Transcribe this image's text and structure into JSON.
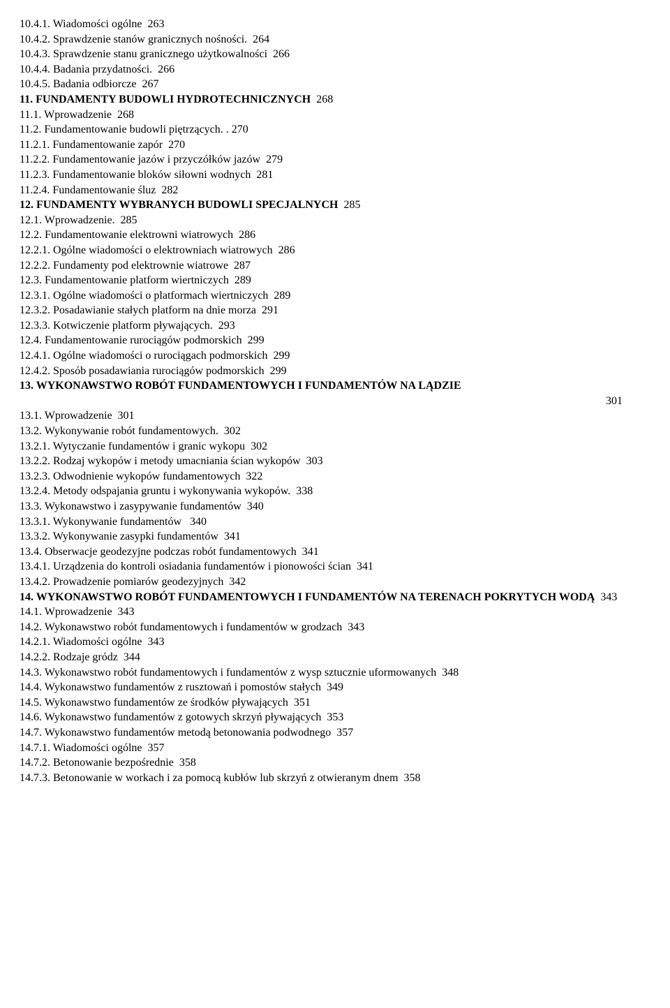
{
  "lines": [
    {
      "text": "10.4.1. Wiadomości ogólne  263",
      "bold": false
    },
    {
      "text": "10.4.2. Sprawdzenie stanów granicznych nośności.  264",
      "bold": false
    },
    {
      "text": "10.4.3. Sprawdzenie stanu granicznego użytkowalności  266",
      "bold": false
    },
    {
      "text": "10.4.4. Badania przydatności.  266",
      "bold": false
    },
    {
      "text": "10.4.5. Badania odbiorcze  267",
      "bold": false
    },
    {
      "prefix": "11. FUNDAMENTY BUDOWLI HYDROTECHNICZNYCH",
      "suffix": "  268",
      "bold": true
    },
    {
      "text": "11.1. Wprowadzenie  268",
      "bold": false
    },
    {
      "text": "11.2. Fundamentowanie budowli piętrzących. . 270",
      "bold": false
    },
    {
      "text": "11.2.1. Fundamentowanie zapór  270",
      "bold": false
    },
    {
      "text": "11.2.2. Fundamentowanie jazów i przyczółków jazów  279",
      "bold": false
    },
    {
      "text": "11.2.3. Fundamentowanie bloków siłowni wodnych  281",
      "bold": false
    },
    {
      "text": "11.2.4. Fundamentowanie śluz  282",
      "bold": false
    },
    {
      "prefix": "12. FUNDAMENTY WYBRANYCH BUDOWLI SPECJALNYCH",
      "suffix": "  285",
      "bold": true
    },
    {
      "text": "12.1. Wprowadzenie.  285",
      "bold": false
    },
    {
      "text": "12.2. Fundamentowanie elektrowni wiatrowych  286",
      "bold": false
    },
    {
      "text": "12.2.1. Ogólne wiadomości o elektrowniach wiatrowych  286",
      "bold": false
    },
    {
      "text": "12.2.2. Fundamenty pod elektrownie wiatrowe  287",
      "bold": false
    },
    {
      "text": "12.3. Fundamentowanie platform wiertniczych  289",
      "bold": false
    },
    {
      "text": "12.3.1. Ogólne wiadomości o platformach wiertniczych  289",
      "bold": false
    },
    {
      "text": "12.3.2. Posadawianie stałych platform na dnie morza  291",
      "bold": false
    },
    {
      "text": "12.3.3. Kotwiczenie platform pływających.  293",
      "bold": false
    },
    {
      "text": "12.4. Fundamentowanie rurociągów podmorskich  299",
      "bold": false
    },
    {
      "text": "12.4.1. Ogólne wiadomości o rurociągach podmorskich  299",
      "bold": false
    },
    {
      "text": "12.4.2. Sposób posadawiania rurociągów podmorskich  299",
      "bold": false
    },
    {
      "prefix": "13. WYKONAWSTWO ROBÓT FUNDAMENTOWYCH I FUNDAMENTÓW NA LĄDZIE",
      "bold": true
    },
    {
      "text": "301",
      "bold": false,
      "align": "right"
    },
    {
      "text": "13.1. Wprowadzenie  301",
      "bold": false
    },
    {
      "text": "13.2. Wykonywanie robót fundamentowych.  302",
      "bold": false
    },
    {
      "text": "13.2.1. Wytyczanie fundamentów i granic wykopu  302",
      "bold": false
    },
    {
      "text": "13.2.2. Rodzaj wykopów i metody umacniania ścian wykopów  303",
      "bold": false
    },
    {
      "text": "13.2.3. Odwodnienie wykopów fundamentowych  322",
      "bold": false
    },
    {
      "text": "13.2.4. Metody odspajania gruntu i wykonywania wykopów.  338",
      "bold": false
    },
    {
      "text": "13.3. Wykonawstwo i zasypywanie fundamentów  340",
      "bold": false
    },
    {
      "text": "13.3.1. Wykonywanie fundamentów   340",
      "bold": false
    },
    {
      "text": "13.3.2. Wykonywanie zasypki fundamentów  341",
      "bold": false
    },
    {
      "text": "13.4. Obserwacje geodezyjne podczas robót fundamentowych  341",
      "bold": false
    },
    {
      "text": "13.4.1. Urządzenia do kontroli osiadania fundamentów i pionowości ścian  341",
      "bold": false
    },
    {
      "text": "13.4.2. Prowadzenie pomiarów geodezyjnych  342",
      "bold": false
    },
    {
      "prefix": "14. WYKONAWSTWO ROBÓT FUNDAMENTOWYCH I FUNDAMENTÓW NA TERENACH POKRYTYCH WODĄ",
      "suffix": "  343",
      "bold": true
    },
    {
      "text": "14.1. Wprowadzenie  343",
      "bold": false
    },
    {
      "text": "14.2. Wykonawstwo robót fundamentowych i fundamentów w grodzach  343",
      "bold": false
    },
    {
      "text": "14.2.1. Wiadomości ogólne  343",
      "bold": false
    },
    {
      "text": "14.2.2. Rodzaje gródz  344",
      "bold": false
    },
    {
      "text": "14.3. Wykonawstwo robót fundamentowych i fundamentów z wysp sztucznie uformowanych  348",
      "bold": false
    },
    {
      "text": "14.4. Wykonawstwo fundamentów z rusztowań i pomostów stałych  349",
      "bold": false
    },
    {
      "text": "14.5. Wykonawstwo fundamentów ze środków pływających  351",
      "bold": false
    },
    {
      "text": "14.6. Wykonawstwo fundamentów z gotowych skrzyń pływających  353",
      "bold": false
    },
    {
      "text": "14.7. Wykonawstwo fundamentów metodą betonowania podwodnego  357",
      "bold": false
    },
    {
      "text": "14.7.1. Wiadomości ogólne  357",
      "bold": false
    },
    {
      "text": "14.7.2. Betonowanie bezpośrednie  358",
      "bold": false
    },
    {
      "text": "14.7.3. Betonowanie w workach i za pomocą kubłów lub skrzyń z otwieranym dnem  358",
      "bold": false
    }
  ]
}
